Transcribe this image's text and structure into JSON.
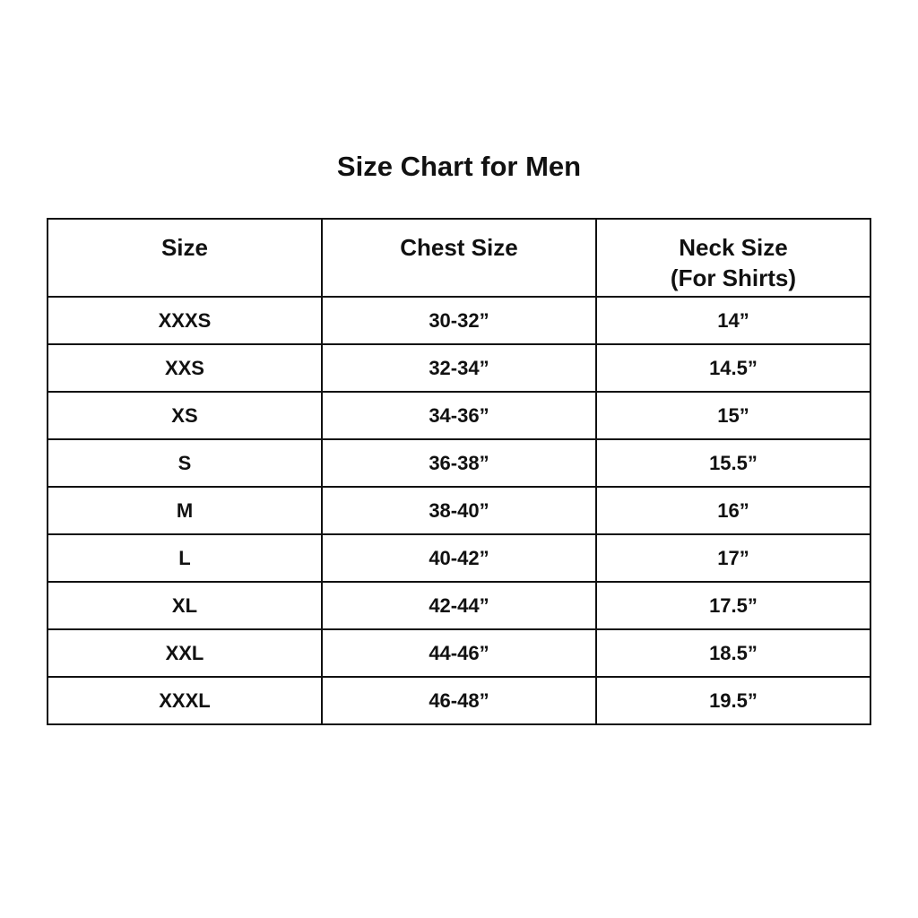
{
  "title": "Size Chart for Men",
  "headers": {
    "size": "Size",
    "chest": "Chest Size",
    "neck": "Neck Size",
    "neck_sub": "(For Shirts)"
  },
  "rows": [
    {
      "size": "XXXS",
      "chest": "30-32”",
      "neck": "14”"
    },
    {
      "size": "XXS",
      "chest": "32-34”",
      "neck": "14.5”"
    },
    {
      "size": "XS",
      "chest": "34-36”",
      "neck": "15”"
    },
    {
      "size": "S",
      "chest": "36-38”",
      "neck": "15.5”"
    },
    {
      "size": "M",
      "chest": "38-40”",
      "neck": "16”"
    },
    {
      "size": "L",
      "chest": "40-42”",
      "neck": "17”"
    },
    {
      "size": "XL",
      "chest": "42-44”",
      "neck": "17.5”"
    },
    {
      "size": "XXL",
      "chest": "44-46”",
      "neck": "18.5”"
    },
    {
      "size": "XXXL",
      "chest": "46-48”",
      "neck": "19.5”"
    }
  ]
}
